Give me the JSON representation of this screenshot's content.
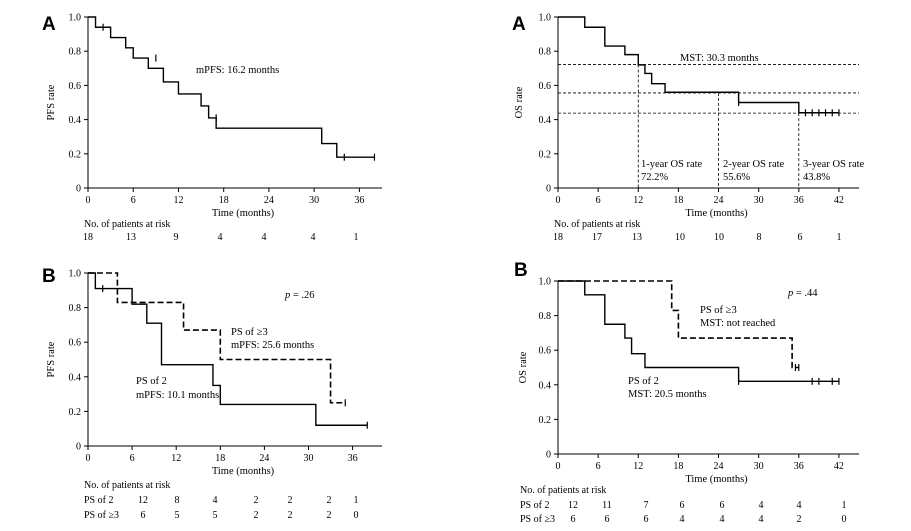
{
  "chart_data": [
    {
      "type": "line",
      "panel": "A",
      "title": "",
      "xlabel": "Time (months)",
      "ylabel": "PFS rate",
      "xlim": [
        0,
        39
      ],
      "ylim": [
        0,
        1.0
      ],
      "xticks": [
        "0",
        "6",
        "12",
        "18",
        "24",
        "30",
        "36"
      ],
      "yticks": [
        "0",
        "0.2",
        "0.4",
        "0.6",
        "0.8",
        "1.0"
      ],
      "series": [
        {
          "name": "PFS",
          "style": "solid",
          "x": [
            0,
            1,
            3,
            5,
            6,
            8,
            10,
            12,
            15,
            16,
            17,
            30,
            31,
            33,
            38
          ],
          "y": [
            1.0,
            0.94,
            0.88,
            0.82,
            0.76,
            0.7,
            0.62,
            0.55,
            0.48,
            0.41,
            0.35,
            0.35,
            0.26,
            0.18,
            0.18
          ],
          "censor_x": [
            2,
            9,
            17,
            34,
            38
          ],
          "censor_y": [
            0.94,
            0.76,
            0.41,
            0.18,
            0.18
          ]
        }
      ],
      "annotations": [
        "mPFS: 16.2 months"
      ],
      "risk_table": {
        "title": "No. of patients at risk",
        "rows": [
          {
            "label": "",
            "values": [
              "18",
              "13",
              "9",
              "4",
              "4",
              "4",
              "1"
            ]
          }
        ]
      }
    },
    {
      "type": "line",
      "panel": "A",
      "title": "",
      "xlabel": "Time (months)",
      "ylabel": "OS rate",
      "xlim": [
        0,
        45
      ],
      "ylim": [
        0,
        1.0
      ],
      "xticks": [
        "0",
        "6",
        "12",
        "18",
        "24",
        "30",
        "36",
        "42"
      ],
      "yticks": [
        "0",
        "0.2",
        "0.4",
        "0.6",
        "0.8",
        "1.0"
      ],
      "series": [
        {
          "name": "OS",
          "style": "solid",
          "x": [
            0,
            4,
            7,
            10,
            12,
            13,
            14,
            16,
            18,
            27,
            36,
            42
          ],
          "y": [
            1.0,
            0.94,
            0.83,
            0.78,
            0.72,
            0.67,
            0.61,
            0.56,
            0.56,
            0.5,
            0.44,
            0.44
          ],
          "censor_x": [
            7,
            27,
            37,
            38,
            39,
            40,
            41,
            42
          ],
          "censor_y": [
            0.89,
            0.5,
            0.44,
            0.44,
            0.44,
            0.44,
            0.44,
            0.44
          ]
        }
      ],
      "reference_points": [
        {
          "x": 12,
          "y": 0.722,
          "label_1": "1-year OS rate",
          "label_2": "72.2%"
        },
        {
          "x": 24,
          "y": 0.556,
          "label_1": "2-year OS rate",
          "label_2": "55.6%"
        },
        {
          "x": 36,
          "y": 0.438,
          "label_1": "3-year OS rate",
          "label_2": "43.8%"
        }
      ],
      "annotations": [
        "MST: 30.3 months"
      ],
      "risk_table": {
        "title": "No. of patients at risk",
        "rows": [
          {
            "label": "",
            "values": [
              "18",
              "17",
              "13",
              "10",
              "10",
              "8",
              "6",
              "1"
            ]
          }
        ]
      }
    },
    {
      "type": "line",
      "panel": "B",
      "title": "",
      "xlabel": "Time (months)",
      "ylabel": "PFS rate",
      "xlim": [
        0,
        40
      ],
      "ylim": [
        0,
        1.0
      ],
      "xticks": [
        "0",
        "6",
        "12",
        "18",
        "24",
        "30",
        "36"
      ],
      "yticks": [
        "0",
        "0.2",
        "0.4",
        "0.6",
        "0.8",
        "1.0"
      ],
      "pvalue": ".26",
      "series": [
        {
          "name": "PS of 2",
          "style": "solid",
          "x": [
            0,
            1,
            3,
            6,
            8,
            10,
            16,
            17,
            18,
            30,
            31,
            38
          ],
          "y": [
            1.0,
            0.91,
            0.91,
            0.82,
            0.71,
            0.47,
            0.47,
            0.35,
            0.24,
            0.24,
            0.12,
            0.12
          ],
          "censor_x": [
            2,
            38
          ],
          "censor_y": [
            0.91,
            0.12
          ],
          "label_1": "PS of 2",
          "label_2": "mPFS: 10.1 months"
        },
        {
          "name": "PS of ≥3",
          "style": "dashed",
          "x": [
            0,
            4,
            5,
            13,
            18,
            33,
            35
          ],
          "y": [
            1.0,
            0.83,
            0.83,
            0.67,
            0.5,
            0.25,
            0.25
          ],
          "censor_x": [
            35
          ],
          "censor_y": [
            0.25
          ],
          "label_1": "PS of ≥3",
          "label_2": "mPFS: 25.6 months"
        }
      ],
      "risk_table": {
        "title": "No. of patients at risk",
        "rows": [
          {
            "label": "PS of 2",
            "values": [
              "12",
              "8",
              "4",
              "2",
              "2",
              "2",
              "1"
            ]
          },
          {
            "label": "PS of ≥3",
            "values": [
              "6",
              "5",
              "5",
              "2",
              "2",
              "2",
              "0"
            ]
          }
        ]
      }
    },
    {
      "type": "line",
      "panel": "B",
      "title": "",
      "xlabel": "Time (months)",
      "ylabel": "OS rate",
      "xlim": [
        0,
        45
      ],
      "ylim": [
        0,
        1.0
      ],
      "xticks": [
        "0",
        "6",
        "12",
        "18",
        "24",
        "30",
        "36",
        "42"
      ],
      "yticks": [
        "0",
        "0.2",
        "0.4",
        "0.6",
        "0.8",
        "1.0"
      ],
      "pvalue": ".44",
      "series": [
        {
          "name": "PS of 2",
          "style": "solid",
          "x": [
            0,
            4,
            7,
            10,
            11,
            13,
            26,
            27,
            42
          ],
          "y": [
            1.0,
            0.92,
            0.75,
            0.67,
            0.58,
            0.5,
            0.5,
            0.42,
            0.42
          ],
          "censor_x": [
            27,
            38,
            39,
            41,
            42
          ],
          "censor_y": [
            0.42,
            0.42,
            0.42,
            0.42,
            0.42
          ],
          "label_1": "PS of 2",
          "label_2": "MST: 20.5 months"
        },
        {
          "name": "PS of ≥3",
          "style": "dashed",
          "x": [
            0,
            15,
            17,
            18,
            34,
            35,
            36
          ],
          "y": [
            1.0,
            1.0,
            0.83,
            0.67,
            0.67,
            0.5,
            0.5
          ],
          "censor_x": [
            35.5,
            36
          ],
          "censor_y": [
            0.5,
            0.5
          ],
          "label_1": "PS of ≥3",
          "label_2": "MST: not reached"
        }
      ],
      "risk_table": {
        "title": "No. of patients at risk",
        "rows": [
          {
            "label": "PS of 2",
            "values": [
              "12",
              "11",
              "7",
              "6",
              "6",
              "4",
              "4",
              "1"
            ]
          },
          {
            "label": "PS of ≥3",
            "values": [
              "6",
              "6",
              "6",
              "4",
              "4",
              "4",
              "2",
              "0"
            ]
          }
        ]
      }
    }
  ]
}
